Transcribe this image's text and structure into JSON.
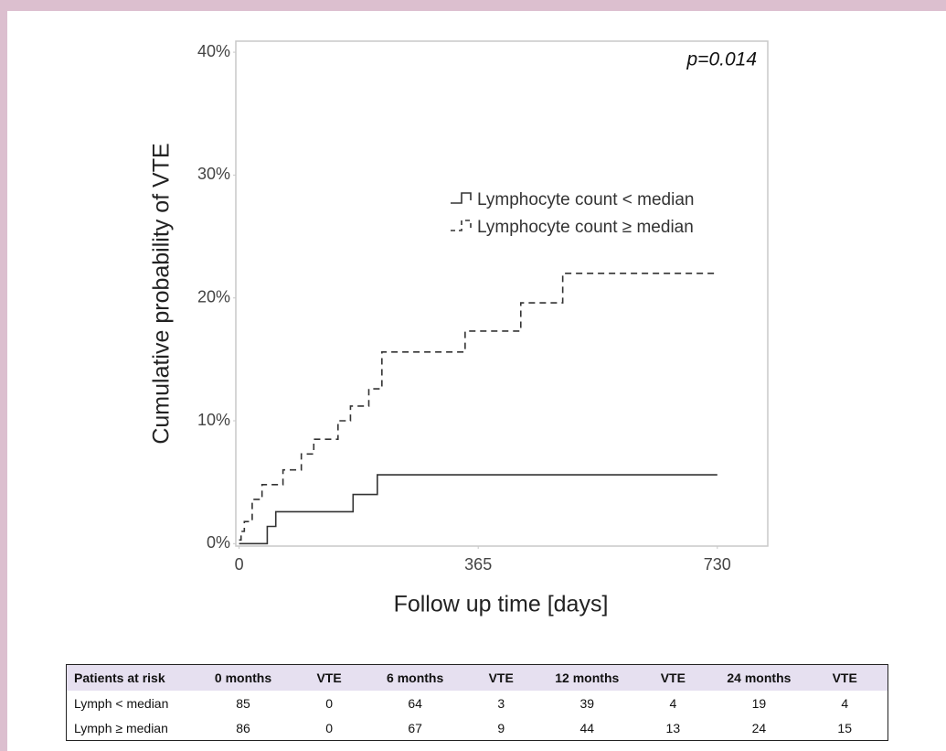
{
  "chart_data": {
    "type": "step",
    "annotation": "p=0.014",
    "xlabel": "Follow up time [days]",
    "ylabel": "Cumulative probability of VTE",
    "xlim": [
      -5,
      807
    ],
    "ylim": [
      -0.2,
      40.9
    ],
    "xticks": [
      0,
      365,
      730
    ],
    "yticks": [
      {
        "value": 0,
        "label": "0%"
      },
      {
        "value": 10,
        "label": "10%"
      },
      {
        "value": 20,
        "label": "20%"
      },
      {
        "value": 30,
        "label": "30%"
      },
      {
        "value": 40,
        "label": "40%"
      }
    ],
    "grid": false,
    "legend": "upper right",
    "series": [
      {
        "name": "Lymphocyte count < median",
        "color": "#333333",
        "line_style": "solid",
        "x": [
          0,
          43,
          56,
          174,
          211,
          730
        ],
        "values": [
          0,
          1.4,
          2.6,
          4.0,
          5.6,
          5.6
        ]
      },
      {
        "name": "Lymphocyte count ≥ median",
        "color": "#333333",
        "line_style": "dashed",
        "x": [
          0,
          3,
          8,
          20,
          35,
          67,
          95,
          114,
          151,
          170,
          198,
          218,
          345,
          430,
          494,
          730
        ],
        "values": [
          0.3,
          1.0,
          1.8,
          3.6,
          4.8,
          6.0,
          7.3,
          8.5,
          10.0,
          11.2,
          12.6,
          15.6,
          17.3,
          19.6,
          22.0,
          22.0
        ]
      }
    ]
  },
  "table": {
    "header": [
      "Patients at risk",
      "0 months",
      "VTE",
      "6 months",
      "VTE",
      "12 months",
      "VTE",
      "24 months",
      "VTE"
    ],
    "rows": [
      [
        "Lymph < median",
        85,
        0,
        64,
        3,
        39,
        4,
        19,
        4
      ],
      [
        "Lymph ≥ median",
        86,
        0,
        67,
        9,
        44,
        13,
        24,
        15
      ]
    ]
  }
}
